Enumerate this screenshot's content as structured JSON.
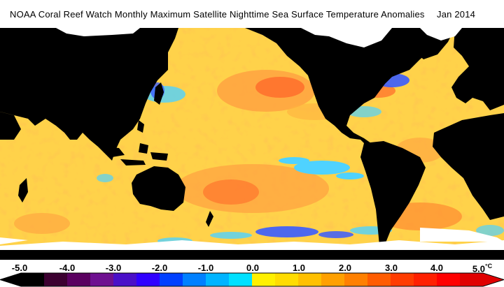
{
  "title": {
    "text": "NOAA Coral Reef Watch Monthly Maximum Satellite Nighttime Sea Surface Temperature Anomalies",
    "date": "Jan 2014"
  },
  "colorbar": {
    "ticks": [
      "-5.0",
      "-4.0",
      "-3.0",
      "-2.0",
      "-1.0",
      "0.0",
      "1.0",
      "2.0",
      "3.0",
      "4.0",
      "5.0"
    ],
    "unit": "°C",
    "min": -5.0,
    "max": 5.0,
    "colors": [
      "#000000",
      "#3c0030",
      "#5a0060",
      "#6e1090",
      "#4a10c8",
      "#3000ff",
      "#0040ff",
      "#0080ff",
      "#00b4ff",
      "#00e0ff",
      "#fff000",
      "#ffdc00",
      "#ffc000",
      "#ffa000",
      "#ff8000",
      "#ff5c00",
      "#ff3c00",
      "#ff2000",
      "#ff0000",
      "#e00000"
    ]
  },
  "map": {
    "land_color": "#000000",
    "ice_color": "#ffffff",
    "ocean_colors": {
      "neutral": "#ffd24a",
      "warm": "#ffa040",
      "hot": "#ff6a2a",
      "cool": "#4fd2ff",
      "cold": "#3a5cff"
    }
  }
}
